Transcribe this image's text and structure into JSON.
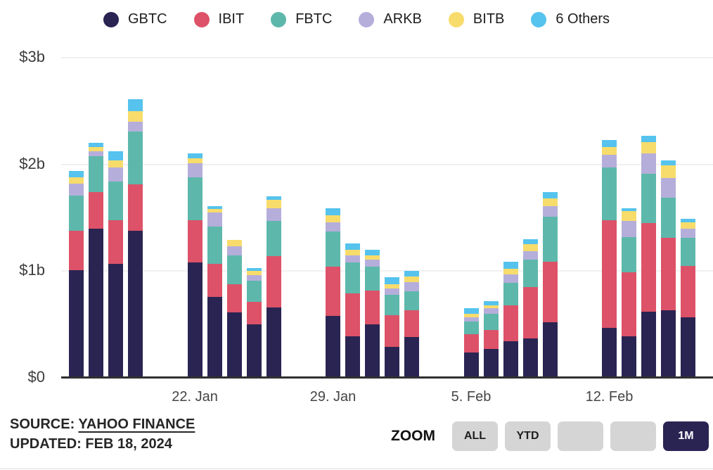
{
  "chart_data": {
    "type": "bar",
    "stacked": true,
    "title": "",
    "xlabel": "",
    "ylabel": "",
    "ylim": [
      0,
      3
    ],
    "grid": true,
    "legend_position": "top",
    "unit": "USD billions daily volume",
    "day_offsets": [
      0,
      1,
      2,
      3,
      6,
      7,
      8,
      9,
      10,
      13,
      14,
      15,
      16,
      17,
      20,
      21,
      22,
      23,
      24,
      27,
      28,
      29,
      30,
      31
    ],
    "x_ticks": [
      {
        "day": 6,
        "label": "22. Jan"
      },
      {
        "day": 13,
        "label": "29. Jan"
      },
      {
        "day": 20,
        "label": "5. Feb"
      },
      {
        "day": 27,
        "label": "12. Feb"
      }
    ],
    "y_ticks": [
      {
        "value": 0,
        "label": "$0"
      },
      {
        "value": 1,
        "label": "$1b"
      },
      {
        "value": 2,
        "label": "$2b"
      },
      {
        "value": 3,
        "label": "$3b"
      }
    ],
    "series": [
      {
        "name": "GBTC",
        "color": "#2a2453",
        "values": [
          1.01,
          1.4,
          1.07,
          1.38,
          1.08,
          0.76,
          0.61,
          0.5,
          0.66,
          0.58,
          0.39,
          0.5,
          0.29,
          0.38,
          0.24,
          0.27,
          0.34,
          0.37,
          0.52,
          0.47,
          0.39,
          0.62,
          0.63,
          0.57
        ]
      },
      {
        "name": "IBIT",
        "color": "#dd5268",
        "values": [
          0.37,
          0.34,
          0.41,
          0.43,
          0.4,
          0.31,
          0.27,
          0.21,
          0.48,
          0.46,
          0.4,
          0.32,
          0.3,
          0.25,
          0.17,
          0.18,
          0.34,
          0.48,
          0.57,
          1.01,
          0.6,
          0.83,
          0.68,
          0.48
        ]
      },
      {
        "name": "FBTC",
        "color": "#5db8ab",
        "values": [
          0.33,
          0.34,
          0.36,
          0.5,
          0.4,
          0.35,
          0.27,
          0.2,
          0.33,
          0.33,
          0.29,
          0.22,
          0.19,
          0.18,
          0.12,
          0.15,
          0.21,
          0.26,
          0.42,
          0.49,
          0.33,
          0.46,
          0.38,
          0.26
        ]
      },
      {
        "name": "ARKB",
        "color": "#b5aedb",
        "values": [
          0.11,
          0.04,
          0.13,
          0.09,
          0.13,
          0.13,
          0.08,
          0.05,
          0.12,
          0.09,
          0.07,
          0.07,
          0.06,
          0.09,
          0.04,
          0.05,
          0.08,
          0.08,
          0.1,
          0.12,
          0.15,
          0.19,
          0.18,
          0.09
        ]
      },
      {
        "name": "BITB",
        "color": "#f8dc6b",
        "values": [
          0.06,
          0.04,
          0.07,
          0.1,
          0.05,
          0.03,
          0.06,
          0.04,
          0.08,
          0.06,
          0.05,
          0.04,
          0.04,
          0.05,
          0.03,
          0.03,
          0.05,
          0.06,
          0.07,
          0.07,
          0.09,
          0.11,
          0.12,
          0.06
        ]
      },
      {
        "name": "6 Others",
        "color": "#55c3ee",
        "values": [
          0.06,
          0.04,
          0.08,
          0.11,
          0.04,
          0.03,
          0.0,
          0.03,
          0.03,
          0.07,
          0.06,
          0.05,
          0.06,
          0.05,
          0.05,
          0.04,
          0.07,
          0.05,
          0.06,
          0.07,
          0.03,
          0.06,
          0.05,
          0.03
        ]
      }
    ]
  },
  "footer": {
    "source_prefix": "SOURCE: ",
    "source_link": "YAHOO FINANCE",
    "updated": "UPDATED: FEB 18, 2024"
  },
  "zoom": {
    "label": "ZOOM",
    "buttons": [
      {
        "label": "ALL",
        "active": false
      },
      {
        "label": "YTD",
        "active": false
      },
      {
        "label": "",
        "active": false
      },
      {
        "label": "",
        "active": false
      },
      {
        "label": "1M",
        "active": true
      }
    ]
  },
  "colors": {
    "grid": "#f0f0f0",
    "axis": "#303030",
    "accent": "#2a2453"
  }
}
